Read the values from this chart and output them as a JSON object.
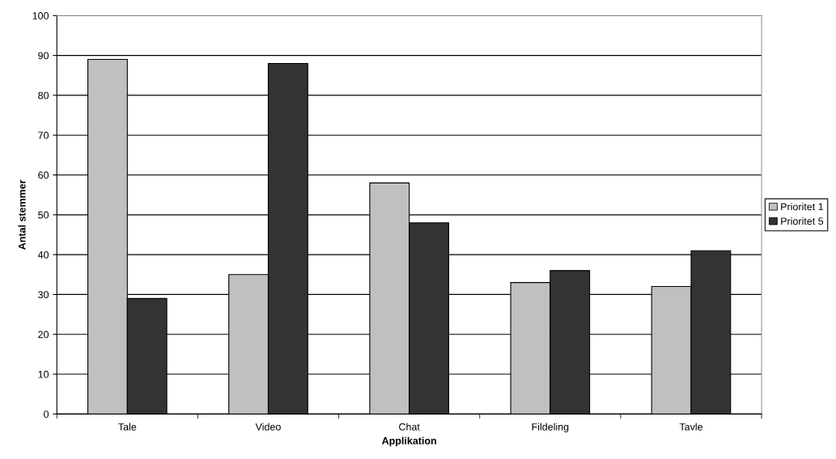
{
  "chart_data": {
    "type": "bar",
    "xlabel": "Applikation",
    "ylabel": "Antal stemmer",
    "categories": [
      "Tale",
      "Video",
      "Chat",
      "Fildeling",
      "Tavle"
    ],
    "series": [
      {
        "name": "Prioritet 1",
        "color": "#c0c0c0",
        "values": [
          89,
          35,
          58,
          33,
          32
        ]
      },
      {
        "name": "Prioritet 5",
        "color": "#333333",
        "values": [
          29,
          88,
          48,
          36,
          41
        ]
      }
    ],
    "ylim": [
      0,
      100
    ],
    "yticks": [
      0,
      10,
      20,
      30,
      40,
      50,
      60,
      70,
      80,
      90,
      100
    ],
    "grid": "y",
    "legend": "right"
  }
}
